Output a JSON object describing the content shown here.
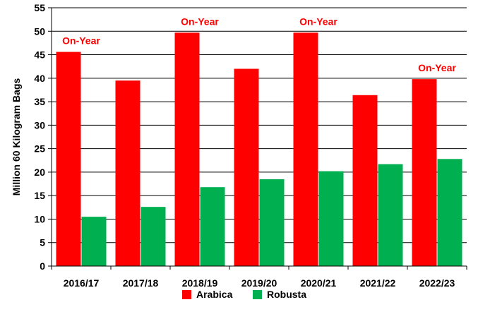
{
  "chart_data": {
    "type": "bar",
    "categories": [
      "2016/17",
      "2017/18",
      "2018/19",
      "2019/20",
      "2020/21",
      "2021/22",
      "2022/23"
    ],
    "series": [
      {
        "name": "Arabica",
        "color": "#ff0000",
        "values": [
          45.6,
          39.5,
          49.7,
          42.0,
          49.7,
          36.4,
          39.8
        ]
      },
      {
        "name": "Robusta",
        "color": "#00b050",
        "values": [
          10.5,
          12.6,
          16.8,
          18.5,
          20.2,
          21.7,
          22.8
        ]
      }
    ],
    "ylabel": "Million 60 Kilogram Bags",
    "xlabel": "",
    "ylim": [
      0,
      55
    ],
    "yticks": [
      0,
      5,
      10,
      15,
      20,
      25,
      30,
      35,
      40,
      45,
      50,
      55
    ],
    "grid": true,
    "legend": "bottom",
    "annotations": [
      {
        "category": "2016/17",
        "text": "On-Year"
      },
      {
        "category": "2018/19",
        "text": "On-Year"
      },
      {
        "category": "2020/21",
        "text": "On-Year"
      },
      {
        "category": "2022/23",
        "text": "On-Year"
      }
    ],
    "annotation_color": "#ff0000"
  }
}
